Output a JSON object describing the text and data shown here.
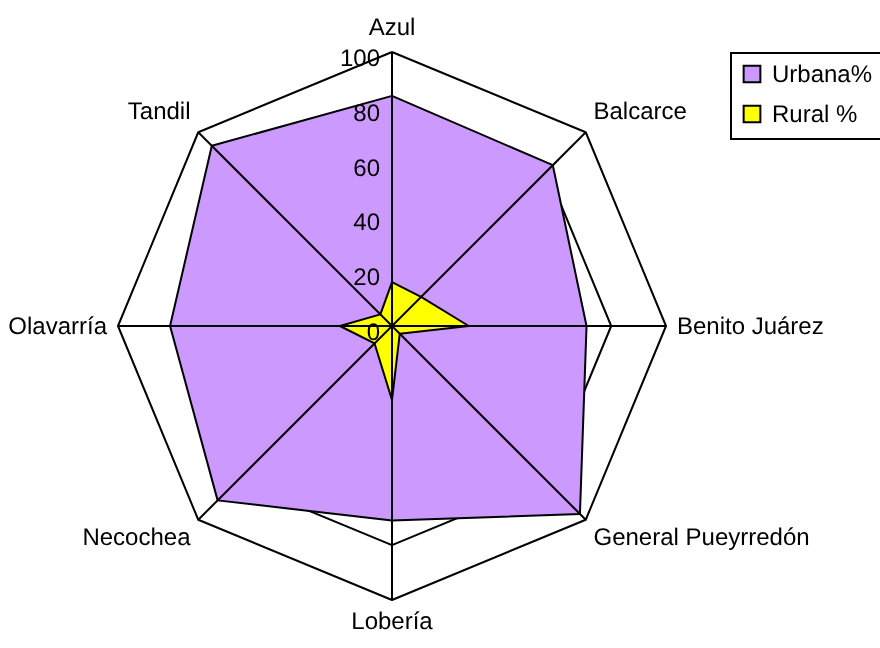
{
  "chart_data": {
    "type": "radar",
    "categories": [
      "Azul",
      "Balcarce",
      "Benito Juárez",
      "General Pueyrredón",
      "Lobería",
      "Necochea",
      "Olavarría",
      "Tandil"
    ],
    "series": [
      {
        "name": "Urbana%",
        "color": "#cc99ff",
        "values": [
          84,
          83,
          71,
          97,
          71,
          90,
          81,
          93
        ]
      },
      {
        "name": "Rural %",
        "color": "#ffff00",
        "values": [
          16,
          15,
          28,
          4,
          27,
          9,
          19,
          6
        ]
      }
    ],
    "ylim": [
      0,
      100
    ],
    "yticks": [
      0,
      20,
      40,
      60,
      80,
      100
    ],
    "grid": true,
    "legend": "right"
  }
}
